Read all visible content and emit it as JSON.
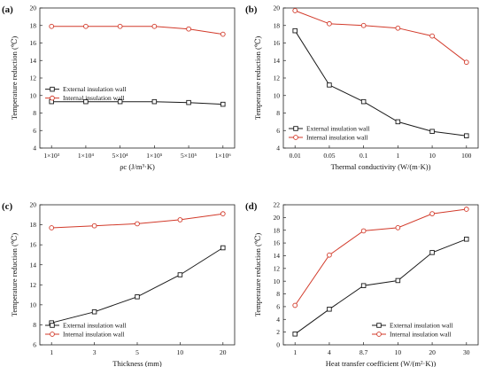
{
  "colors": {
    "external": "#1a1a1a",
    "internal": "#d23a2a"
  },
  "chart_data": [
    {
      "type": "line",
      "panel_label": "(a)",
      "xlabel": "ρc (J/m³·K)",
      "ylabel": "Temperature reduction (℃)",
      "categories": [
        "1×10³",
        "1×10⁴",
        "5×10⁴",
        "1×10⁵",
        "5×10⁵",
        "1×10⁶"
      ],
      "ylim": [
        4,
        20
      ],
      "yticks": [
        "4",
        "6",
        "8",
        "10",
        "12",
        "14",
        "16",
        "18",
        "20"
      ],
      "legend": "middle-left",
      "series": [
        {
          "name": "External insulation wall",
          "values": [
            9.3,
            9.3,
            9.3,
            9.3,
            9.2,
            9.0
          ]
        },
        {
          "name": "Internal insulation wall",
          "values": [
            17.9,
            17.9,
            17.9,
            17.9,
            17.6,
            17.0
          ]
        }
      ]
    },
    {
      "type": "line",
      "panel_label": "(b)",
      "xlabel": "Thermal conductivity (W/(m·K))",
      "ylabel": "Temperature reduction (℃)",
      "categories": [
        "0.01",
        "0.05",
        "0.1",
        "1",
        "10",
        "100"
      ],
      "ylim": [
        4,
        20
      ],
      "yticks": [
        "4",
        "6",
        "8",
        "10",
        "12",
        "14",
        "16",
        "18",
        "20"
      ],
      "legend": "bottom-left",
      "series": [
        {
          "name": "External insulation wall",
          "values": [
            17.4,
            11.2,
            9.3,
            7.0,
            5.9,
            5.4
          ]
        },
        {
          "name": "Internal insulation wall",
          "values": [
            19.7,
            18.2,
            18.0,
            17.7,
            16.8,
            13.8
          ]
        }
      ]
    },
    {
      "type": "line",
      "panel_label": "(c)",
      "xlabel": "Thickness (mm)",
      "ylabel": "Temperature reduction (℃)",
      "categories": [
        "1",
        "3",
        "5",
        "10",
        "20"
      ],
      "ylim": [
        6,
        20
      ],
      "yticks": [
        "6",
        "8",
        "10",
        "12",
        "14",
        "16",
        "18",
        "20"
      ],
      "legend": "bottom-left",
      "series": [
        {
          "name": "External insulation wall",
          "values": [
            8.2,
            9.3,
            10.8,
            13.0,
            15.7
          ]
        },
        {
          "name": "Internal insulation wall",
          "values": [
            17.7,
            17.9,
            18.1,
            18.5,
            19.1
          ]
        }
      ]
    },
    {
      "type": "line",
      "panel_label": "(d)",
      "xlabel": "Heat transfer coefficient (W/(m²·K))",
      "ylabel": "Temperature reduction (℃)",
      "categories": [
        "1",
        "4",
        "8.7",
        "10",
        "20",
        "30"
      ],
      "ylim": [
        0,
        22
      ],
      "yticks": [
        "0",
        "2",
        "4",
        "6",
        "8",
        "10",
        "12",
        "14",
        "16",
        "18",
        "20",
        "22"
      ],
      "legend": "bottom-right",
      "series": [
        {
          "name": "External insulation wall",
          "values": [
            1.7,
            5.6,
            9.3,
            10.1,
            14.5,
            16.6
          ]
        },
        {
          "name": "Internal insulation wall",
          "values": [
            6.2,
            14.1,
            17.9,
            18.4,
            20.6,
            21.3
          ]
        }
      ]
    }
  ]
}
